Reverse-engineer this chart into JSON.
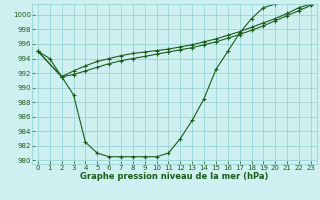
{
  "xlabel": "Graphe pression niveau de la mer (hPa)",
  "background_color": "#cff0f0",
  "grid_color": "#8ecece",
  "line_color": "#1a5c1a",
  "ylim": [
    979.5,
    1001.5
  ],
  "xlim": [
    -0.5,
    23.5
  ],
  "yticks": [
    980,
    982,
    984,
    986,
    988,
    990,
    992,
    994,
    996,
    998,
    1000
  ],
  "xticks": [
    0,
    1,
    2,
    3,
    4,
    5,
    6,
    7,
    8,
    9,
    10,
    11,
    12,
    13,
    14,
    15,
    16,
    17,
    18,
    19,
    20,
    21,
    22,
    23
  ],
  "series_x": [
    [
      0,
      1,
      2,
      3,
      4,
      5,
      6,
      7,
      8,
      9,
      10,
      11,
      12,
      13,
      14,
      15,
      16,
      17,
      18,
      19,
      20
    ],
    [
      0,
      2,
      3,
      4,
      5,
      6,
      7,
      8,
      9,
      10,
      11,
      12,
      13,
      14,
      15,
      16,
      17,
      18,
      19,
      20,
      21,
      22,
      23
    ],
    [
      0,
      2,
      3,
      4,
      5,
      6,
      7,
      8,
      9,
      10,
      11,
      12,
      13,
      14,
      15,
      16,
      17,
      18,
      19,
      20,
      21,
      22,
      23
    ]
  ],
  "series_y": [
    [
      995.0,
      994.0,
      991.5,
      989.0,
      982.5,
      981.0,
      980.5,
      980.5,
      980.5,
      980.5,
      980.5,
      981.0,
      983.0,
      985.5,
      988.5,
      992.5,
      995.0,
      997.5,
      999.5,
      1001.0,
      1001.5
    ],
    [
      995.0,
      991.5,
      992.3,
      993.0,
      993.6,
      994.0,
      994.4,
      994.7,
      994.9,
      995.1,
      995.3,
      995.6,
      995.9,
      996.3,
      996.7,
      997.2,
      997.7,
      998.3,
      998.9,
      999.5,
      1000.2,
      1001.0,
      1001.5
    ],
    [
      995.0,
      991.5,
      991.8,
      992.3,
      992.8,
      993.3,
      993.7,
      994.0,
      994.3,
      994.6,
      994.9,
      995.2,
      995.5,
      995.9,
      996.3,
      996.8,
      997.3,
      997.9,
      998.5,
      999.2,
      999.9,
      1000.6,
      1001.3
    ]
  ],
  "marker": "+",
  "markersize": 3.5,
  "linewidth": 0.8,
  "tick_fontsize": 5.0,
  "xlabel_fontsize": 6.0
}
